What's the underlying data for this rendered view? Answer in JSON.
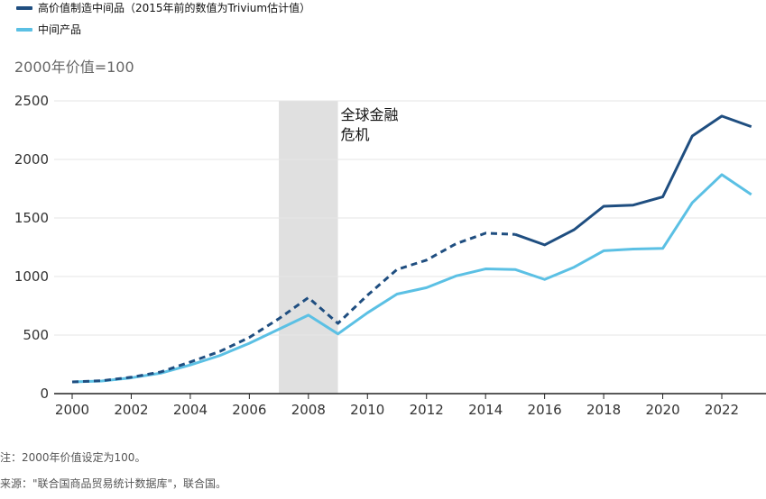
{
  "legend": {
    "series1": "高价值制造中间品（2015年前的数值为Trivium估计值）",
    "series2": "中间产品"
  },
  "notes": {
    "note": "注：2000年价值设定为100。",
    "source": "来源：\"联合国商品贸易统计数据库\"，联合国。"
  },
  "colors": {
    "series1": "#1f4e80",
    "series2": "#5bc0e4",
    "shade": "#e0e0e0",
    "grid": "#e6e6e6",
    "axis": "#222222"
  },
  "chart_data": {
    "type": "line",
    "title": "",
    "ylabel": "2000年价值=100",
    "xlabel": "",
    "ylim": [
      0,
      2500
    ],
    "yticks": [
      "0",
      "500",
      "1000",
      "1500",
      "2000",
      "2500"
    ],
    "xticks": [
      "2000",
      "2002",
      "2004",
      "2006",
      "2008",
      "2010",
      "2012",
      "2014",
      "2016",
      "2018",
      "2020",
      "2022"
    ],
    "x": [
      2000,
      2001,
      2002,
      2003,
      2004,
      2005,
      2006,
      2007,
      2008,
      2009,
      2010,
      2011,
      2012,
      2013,
      2014,
      2015,
      2016,
      2017,
      2018,
      2019,
      2020,
      2021,
      2022,
      2023
    ],
    "series": [
      {
        "name": "高价值制造中间品（2015年前的数值为Trivium估计值）",
        "values": [
          100,
          110,
          140,
          185,
          270,
          360,
          480,
          640,
          820,
          600,
          840,
          1060,
          1140,
          1280,
          1370,
          1360,
          1270,
          1400,
          1600,
          1610,
          1680,
          2200,
          2370,
          2280
        ],
        "dashed_until": 2015
      },
      {
        "name": "中间产品",
        "values": [
          100,
          108,
          135,
          175,
          245,
          325,
          430,
          550,
          670,
          510,
          690,
          850,
          905,
          1005,
          1065,
          1060,
          975,
          1080,
          1220,
          1235,
          1240,
          1630,
          1870,
          1700
        ]
      }
    ],
    "shaded_region": {
      "from": 2007,
      "to": 2009,
      "label_line1": "全球金融",
      "label_line2": "危机"
    }
  }
}
